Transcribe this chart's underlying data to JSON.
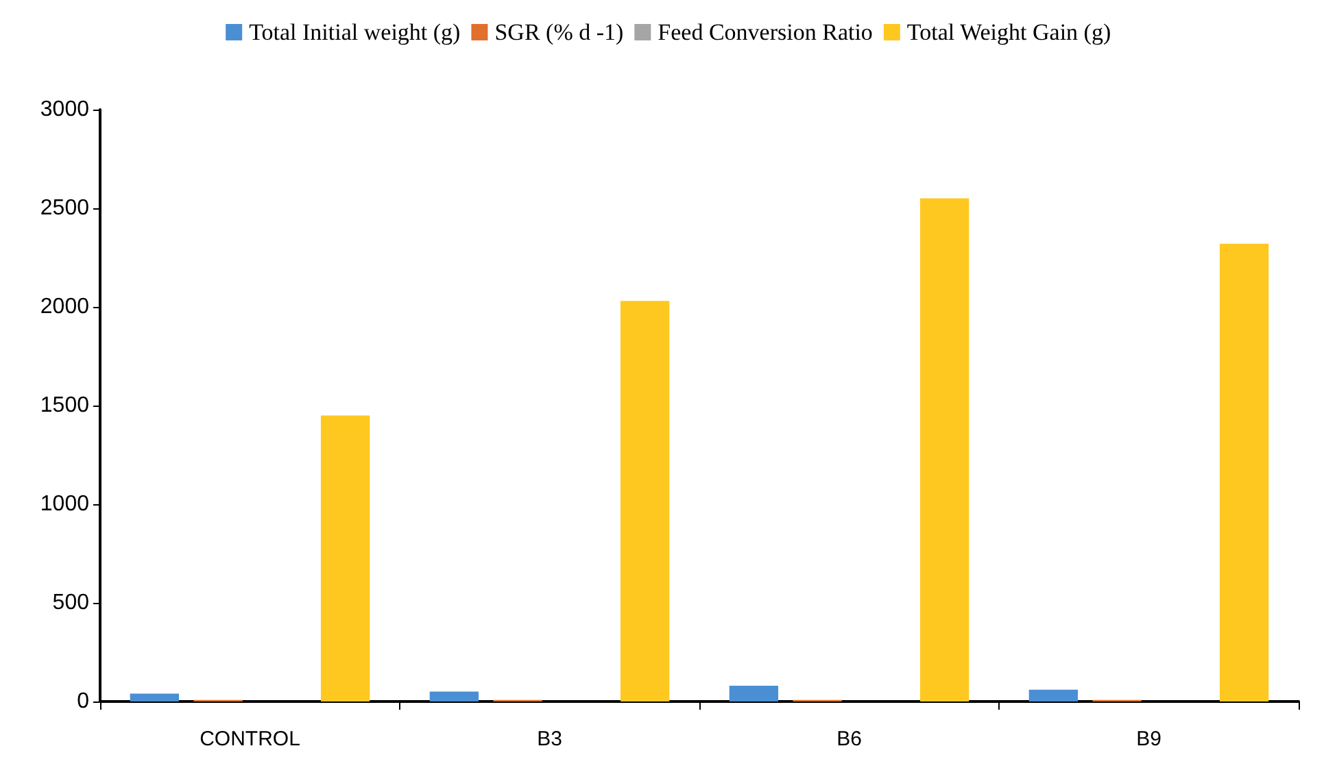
{
  "chart_data": {
    "type": "bar",
    "categories": [
      "CONTROL",
      "B3",
      "B6",
      "B9"
    ],
    "series": [
      {
        "name": "Total Initial weight (g)",
        "color": "#4a8fd4",
        "values": [
          40,
          50,
          80,
          60
        ]
      },
      {
        "name": "SGR (% d -1)",
        "color": "#e0702c",
        "values": [
          8,
          8,
          8,
          8
        ]
      },
      {
        "name": "Feed Conversion Ratio",
        "color": "#a5a5a5",
        "values": [
          null,
          null,
          null,
          null
        ]
      },
      {
        "name": "Total Weight Gain (g)",
        "color": "#ffc821",
        "values": [
          1450,
          2030,
          2550,
          2320
        ]
      }
    ],
    "ylim": [
      0,
      3000
    ],
    "yticks": [
      0,
      500,
      1000,
      1500,
      2000,
      2500,
      3000
    ],
    "grid": false,
    "legend": "top"
  }
}
